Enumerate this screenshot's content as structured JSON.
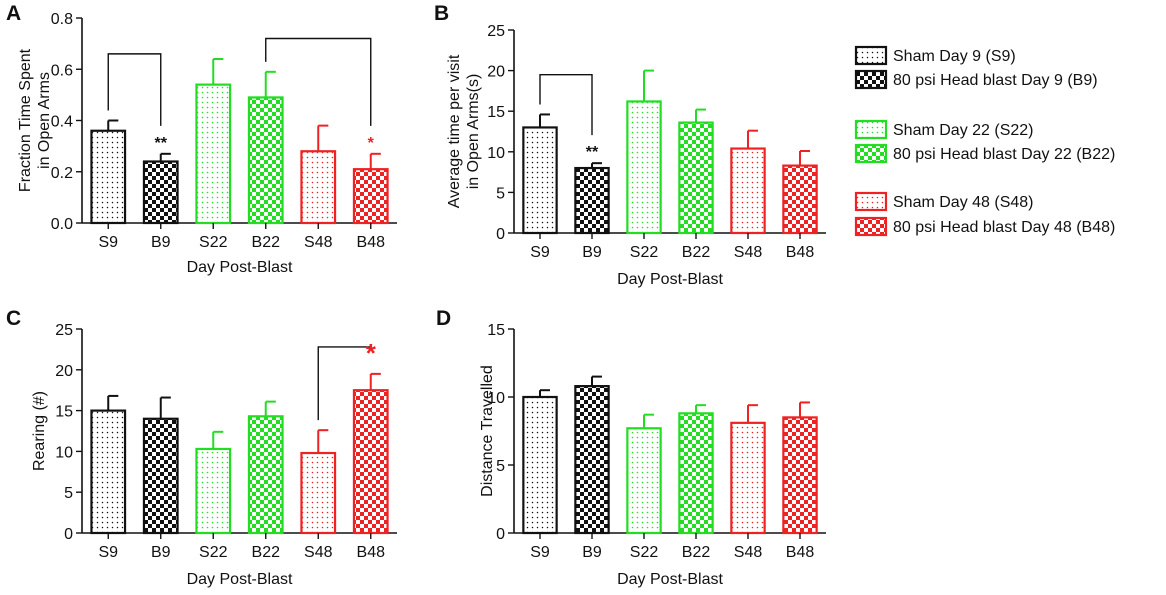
{
  "colors": {
    "black": "#111111",
    "green": "#22dd22",
    "red": "#ee2222"
  },
  "legend": {
    "items": [
      {
        "label": "Sham Day 9 (S9)",
        "color": "black",
        "pattern": "dots"
      },
      {
        "label": "80 psi Head blast Day 9 (B9)",
        "color": "black",
        "pattern": "checker"
      },
      {
        "label": "Sham Day 22 (S22)",
        "color": "green",
        "pattern": "dots"
      },
      {
        "label": "80 psi Head blast Day 22 (B22)",
        "color": "green",
        "pattern": "checker"
      },
      {
        "label": "Sham Day 48 (S48)",
        "color": "red",
        "pattern": "dots"
      },
      {
        "label": "80 psi Head blast Day 48 (B48)",
        "color": "red",
        "pattern": "checker"
      }
    ]
  },
  "chart_data": [
    {
      "panel": "A",
      "type": "bar",
      "ylabel": [
        "Fraction Time Spent",
        "in Open Arms"
      ],
      "xlabel": "Day Post-Blast",
      "categories": [
        "S9",
        "B9",
        "S22",
        "B22",
        "S48",
        "B48"
      ],
      "values": [
        0.36,
        0.24,
        0.54,
        0.49,
        0.28,
        0.21
      ],
      "errors": [
        0.04,
        0.03,
        0.1,
        0.1,
        0.1,
        0.06
      ],
      "ylim": [
        0.0,
        0.8
      ],
      "yticks": [
        "0.0",
        "0.2",
        "0.4",
        "0.6",
        "0.8"
      ],
      "significance": [
        {
          "bar": 1,
          "label": "**",
          "color": "black"
        },
        {
          "bar": 5,
          "label": "*",
          "color": "red"
        }
      ],
      "brackets": [
        {
          "from": 0,
          "to": 1,
          "level": 0.66
        },
        {
          "from": 3,
          "to": 5,
          "level": 0.72
        }
      ]
    },
    {
      "panel": "B",
      "type": "bar",
      "ylabel": [
        "Average time per visit",
        "in Open Arms(s)"
      ],
      "xlabel": "Day Post-Blast",
      "categories": [
        "S9",
        "B9",
        "S22",
        "B22",
        "S48",
        "B48"
      ],
      "values": [
        13.0,
        8.0,
        16.2,
        13.6,
        10.4,
        8.3
      ],
      "errors": [
        1.6,
        0.6,
        3.8,
        1.6,
        2.2,
        1.8
      ],
      "ylim": [
        0,
        25
      ],
      "yticks": [
        "0",
        "5",
        "10",
        "15",
        "20",
        "25"
      ],
      "significance": [
        {
          "bar": 1,
          "label": "**",
          "color": "black"
        }
      ],
      "brackets": [
        {
          "from": 0,
          "to": 1,
          "level": 19.5
        }
      ]
    },
    {
      "panel": "C",
      "type": "bar",
      "ylabel": [
        "Rearing (#)"
      ],
      "xlabel": "Day Post-Blast",
      "categories": [
        "S9",
        "B9",
        "S22",
        "B22",
        "S48",
        "B48"
      ],
      "values": [
        15.0,
        14.0,
        10.3,
        14.3,
        9.8,
        17.5
      ],
      "errors": [
        1.8,
        2.6,
        2.1,
        1.8,
        2.8,
        2.0
      ],
      "ylim": [
        0,
        25
      ],
      "yticks": [
        "0",
        "5",
        "10",
        "15",
        "20",
        "25"
      ],
      "significance": [
        {
          "bar": 5,
          "label": "*",
          "color": "red"
        }
      ],
      "brackets": [
        {
          "from": 4,
          "to": 5,
          "level": 22.8
        }
      ]
    },
    {
      "panel": "D",
      "type": "bar",
      "ylabel": [
        "Distance Travelled"
      ],
      "xlabel": "Day Post-Blast",
      "categories": [
        "S9",
        "B9",
        "S22",
        "B22",
        "S48",
        "B48"
      ],
      "values": [
        10.0,
        10.8,
        7.7,
        8.8,
        8.1,
        8.5
      ],
      "errors": [
        0.5,
        0.7,
        1.0,
        0.6,
        1.3,
        1.1
      ],
      "ylim": [
        0,
        15
      ],
      "yticks": [
        "0",
        "5",
        "10",
        "15"
      ],
      "significance": [],
      "brackets": []
    }
  ]
}
